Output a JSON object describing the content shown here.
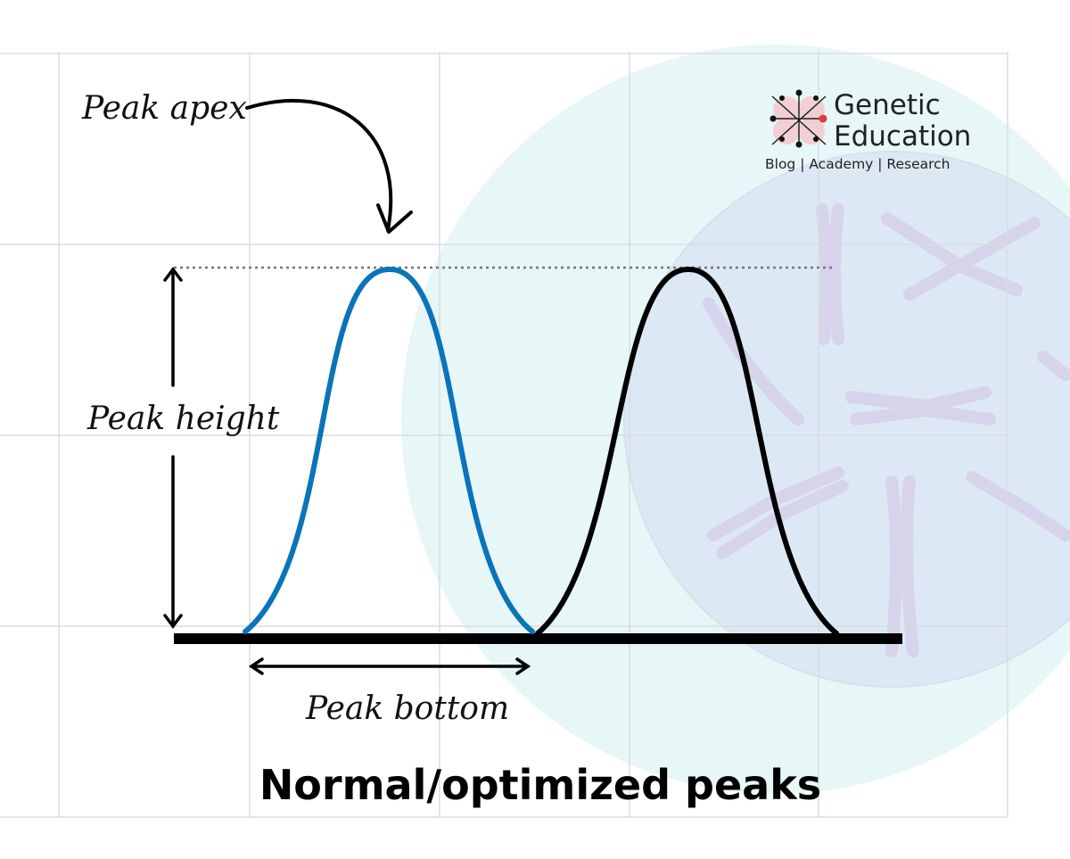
{
  "labels": {
    "peak_apex": "Peak apex",
    "peak_height": "Peak height",
    "peak_bottom": "Peak bottom"
  },
  "caption": "Normal/optimized peaks",
  "brand": {
    "name_line1": "Genetic",
    "name_line2": "Education",
    "tagline": "Blog | Academy | Research"
  },
  "colors": {
    "peak_1": "#0a74b8",
    "peak_2": "#000000",
    "grid": "#d9dde0",
    "background_circle": "#e6f6f7",
    "background_circle_inner": "#dceaf4",
    "chromosome": "#cfc8e8",
    "brand_accent": "#e03a3a"
  },
  "icons": {
    "logo": "dna-chromosome-logo-icon",
    "chromosomes": "chromosome-icon"
  }
}
